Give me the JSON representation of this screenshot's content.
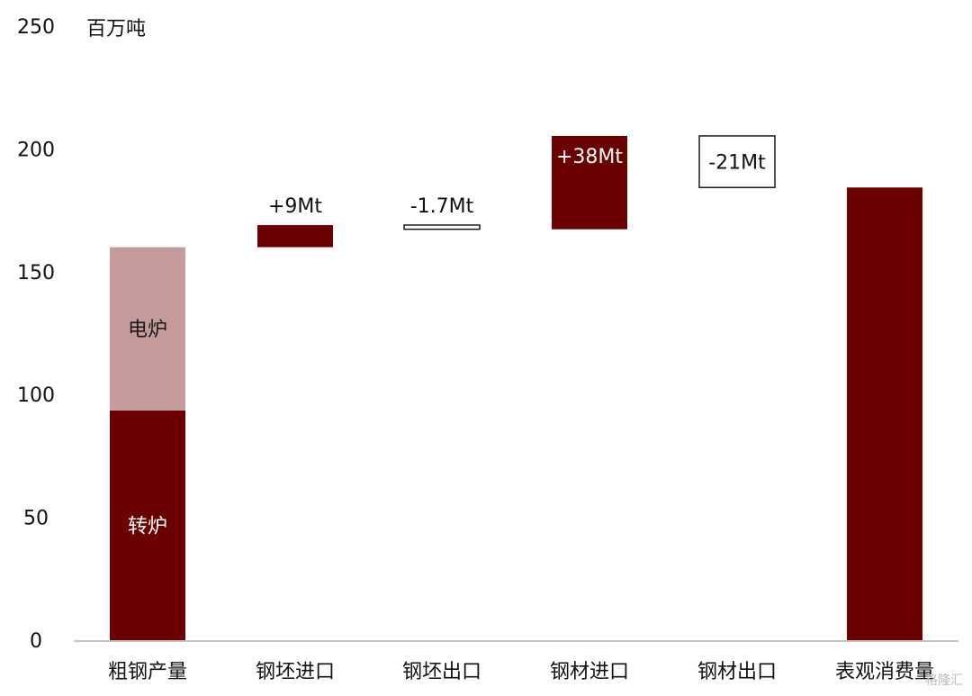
{
  "chart_data": {
    "type": "bar",
    "unit_label": "百万吨",
    "ylim": [
      0,
      250
    ],
    "yticks": [
      0,
      50,
      100,
      150,
      200,
      250
    ],
    "categories": [
      "粗钢产量",
      "钢坯进口",
      "钢坯出口",
      "钢材进口",
      "钢材出口",
      "表观消费量"
    ],
    "bars": [
      {
        "category": "粗钢产量",
        "segment": "转炉",
        "base": 0,
        "top": 93.5,
        "label": "转炉",
        "style": "dark"
      },
      {
        "category": "粗钢产量",
        "segment": "电炉",
        "base": 93.5,
        "top": 160,
        "label": "电炉",
        "style": "light"
      },
      {
        "category": "钢坯进口",
        "base": 160,
        "top": 169,
        "label": "+9Mt",
        "style": "dark"
      },
      {
        "category": "钢坯出口",
        "base": 167.3,
        "top": 169,
        "label": "-1.7Mt",
        "style": "outline"
      },
      {
        "category": "钢材进口",
        "base": 167.3,
        "top": 205.3,
        "label": "+38Mt",
        "style": "dark"
      },
      {
        "category": "钢材出口",
        "base": 184.3,
        "top": 205.3,
        "label": "-21Mt",
        "style": "outline"
      },
      {
        "category": "表观消费量",
        "base": 0,
        "top": 184.3,
        "label": "",
        "style": "dark"
      }
    ],
    "colors": {
      "dark": "#6b0000",
      "light": "#c49a9a",
      "outline": "#ffffff",
      "stroke": "#1a1a1a"
    }
  },
  "watermark": "格隆汇"
}
